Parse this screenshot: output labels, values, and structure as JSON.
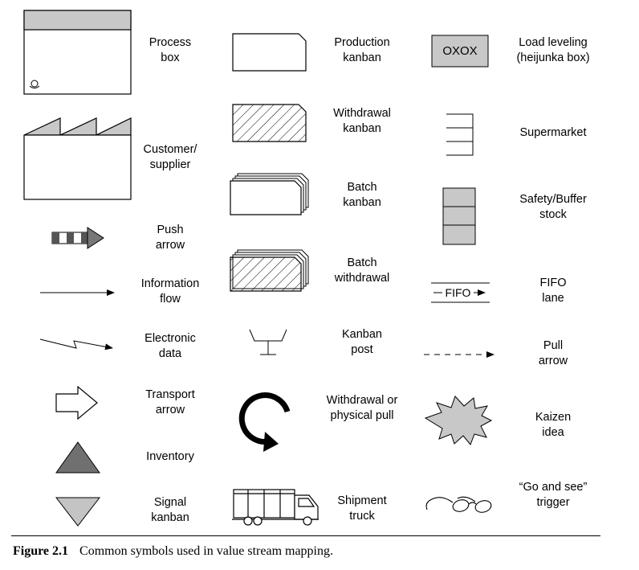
{
  "symbols": [
    {
      "id": "process-box",
      "lines": [
        "Process",
        "box"
      ]
    },
    {
      "id": "customer-supplier",
      "lines": [
        "Customer/",
        "supplier"
      ]
    },
    {
      "id": "push-arrow",
      "lines": [
        "Push",
        "arrow"
      ]
    },
    {
      "id": "information-flow",
      "lines": [
        "Information",
        "flow"
      ]
    },
    {
      "id": "electronic-data",
      "lines": [
        "Electronic",
        "data"
      ]
    },
    {
      "id": "transport-arrow",
      "lines": [
        "Transport",
        "arrow"
      ]
    },
    {
      "id": "inventory",
      "lines": [
        "Inventory"
      ]
    },
    {
      "id": "signal-kanban",
      "lines": [
        "Signal",
        "kanban"
      ]
    },
    {
      "id": "production-kanban",
      "lines": [
        "Production",
        "kanban"
      ]
    },
    {
      "id": "withdrawal-kanban",
      "lines": [
        "Withdrawal",
        "kanban"
      ]
    },
    {
      "id": "batch-kanban",
      "lines": [
        "Batch",
        "kanban"
      ]
    },
    {
      "id": "batch-withdrawal",
      "lines": [
        "Batch",
        "withdrawal"
      ]
    },
    {
      "id": "kanban-post",
      "lines": [
        "Kanban",
        "post"
      ]
    },
    {
      "id": "withdrawal-physical-pull",
      "lines": [
        "Withdrawal or",
        "physical pull"
      ]
    },
    {
      "id": "shipment-truck",
      "lines": [
        "Shipment",
        "truck"
      ]
    },
    {
      "id": "load-leveling",
      "lines": [
        "Load leveling",
        "(heijunka box)"
      ]
    },
    {
      "id": "supermarket",
      "lines": [
        "Supermarket"
      ]
    },
    {
      "id": "safety-buffer-stock",
      "lines": [
        "Safety/Buffer",
        "stock"
      ]
    },
    {
      "id": "fifo-lane",
      "lines": [
        "FIFO",
        "lane"
      ]
    },
    {
      "id": "pull-arrow",
      "lines": [
        "Pull",
        "arrow"
      ]
    },
    {
      "id": "kaizen-idea",
      "lines": [
        "Kaizen",
        "idea"
      ]
    },
    {
      "id": "go-and-see",
      "lines": [
        "“Go and see”",
        "trigger"
      ]
    }
  ],
  "icon_text": {
    "heijunka": "OXOX",
    "fifo": "FIFO"
  },
  "caption": {
    "label": "Figure 2.1",
    "text": "Common symbols used in value stream mapping."
  },
  "colors": {
    "gray_fill": "#c8c8c8",
    "dark_triangle": "#707070",
    "light_triangle": "#c4c4c4"
  }
}
